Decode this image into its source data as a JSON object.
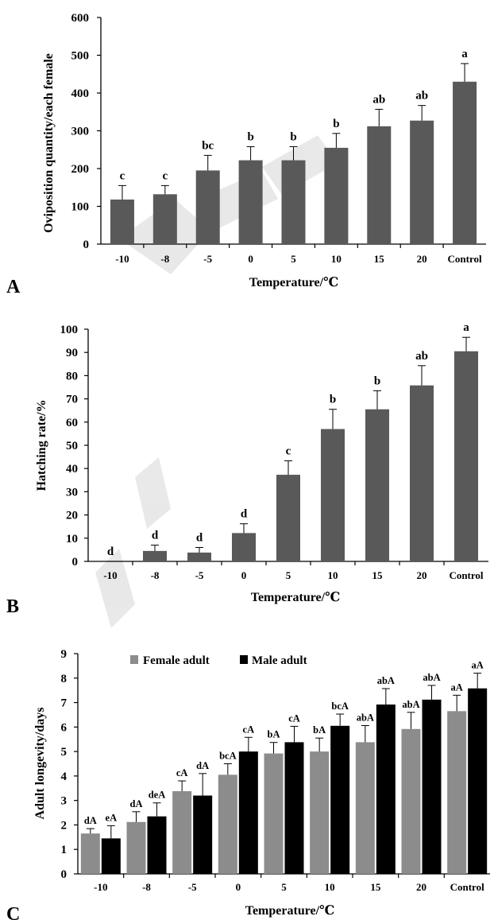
{
  "chart_data": [
    {
      "type": "bar",
      "panel_label": "A",
      "categories": [
        "-10",
        "-8",
        "-5",
        "0",
        "5",
        "10",
        "15",
        "20",
        "Control"
      ],
      "values": [
        118,
        132,
        195,
        222,
        222,
        255,
        312,
        327,
        430
      ],
      "errors": [
        37,
        23,
        40,
        36,
        36,
        38,
        45,
        40,
        48
      ],
      "sig_letters": [
        "c",
        "c",
        "bc",
        "b",
        "b",
        "b",
        "ab",
        "ab",
        "a"
      ],
      "xlabel": "Temperature/℃",
      "ylabel": "Oviposition quantity/each female",
      "ylim": [
        0,
        600
      ],
      "yticks": [
        "0",
        "100",
        "200",
        "300",
        "400",
        "500",
        "600"
      ],
      "bar_color": "#595959"
    },
    {
      "type": "bar",
      "panel_label": "B",
      "categories": [
        "-10",
        "-8",
        "-5",
        "0",
        "5",
        "10",
        "15",
        "20",
        "Control"
      ],
      "values": [
        0,
        4.5,
        3.8,
        12.2,
        37.3,
        57.0,
        65.5,
        75.8,
        90.5
      ],
      "errors": [
        0,
        2.5,
        2.2,
        4.0,
        6.0,
        8.5,
        8.0,
        8.5,
        6.0
      ],
      "sig_letters": [
        "d",
        "d",
        "d",
        "d",
        "c",
        "b",
        "b",
        "ab",
        "a"
      ],
      "xlabel": "Temperature/℃",
      "ylabel": "Hatching rate/%",
      "ylim": [
        0,
        100
      ],
      "yticks": [
        "0",
        "10",
        "20",
        "30",
        "40",
        "50",
        "60",
        "70",
        "80",
        "90",
        "100"
      ],
      "bar_color": "#595959"
    },
    {
      "type": "bar",
      "panel_label": "C",
      "categories": [
        "-10",
        "-8",
        "-5",
        "0",
        "5",
        "10",
        "15",
        "20",
        "Control"
      ],
      "series": [
        {
          "name": "Female adult",
          "color": "#8c8c8c",
          "values": [
            1.65,
            2.12,
            3.38,
            4.05,
            4.92,
            5.0,
            5.38,
            5.92,
            6.65
          ],
          "errors": [
            0.2,
            0.42,
            0.42,
            0.45,
            0.45,
            0.55,
            0.68,
            0.68,
            0.65
          ],
          "sig_letters": [
            "dA",
            "dA",
            "cA",
            "bcA",
            "bA",
            "bA",
            "abA",
            "abA",
            "aA"
          ]
        },
        {
          "name": "Male adult",
          "color": "#000000",
          "values": [
            1.45,
            2.35,
            3.2,
            5.0,
            5.38,
            6.05,
            6.92,
            7.12,
            7.58
          ],
          "errors": [
            0.52,
            0.55,
            0.9,
            0.58,
            0.65,
            0.48,
            0.65,
            0.58,
            0.62
          ],
          "sig_letters": [
            "eA",
            "deA",
            "dA",
            "cA",
            "cA",
            "bcA",
            "abA",
            "abA",
            "aA"
          ]
        }
      ],
      "xlabel": "Temperature/℃",
      "ylabel": "Adult longevity/days",
      "ylim": [
        0,
        9
      ],
      "yticks": [
        "0",
        "1",
        "2",
        "3",
        "4",
        "5",
        "6",
        "7",
        "8",
        "9"
      ],
      "legend_position": "top-left"
    }
  ]
}
